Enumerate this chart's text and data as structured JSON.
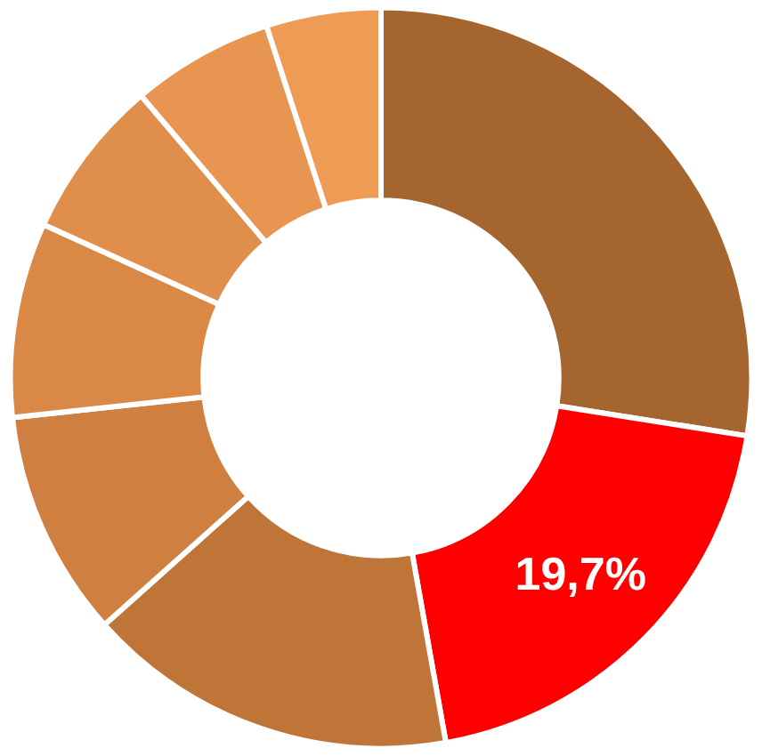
{
  "chart_data": {
    "type": "donut",
    "categories": [
      null,
      null,
      null,
      null,
      null,
      null,
      null,
      null
    ],
    "values": [
      27.5,
      19.7,
      16.2,
      9.9,
      8.5,
      7.0,
      6.2,
      5.0
    ],
    "colors": [
      "#a5652f",
      "#ff0000",
      "#bf7438",
      "#cf7f40",
      "#da8846",
      "#e08e4b",
      "#e79550",
      "#ee9b56"
    ],
    "value_labels": [
      null,
      "19,7%",
      null,
      null,
      null,
      null,
      null,
      null
    ]
  }
}
